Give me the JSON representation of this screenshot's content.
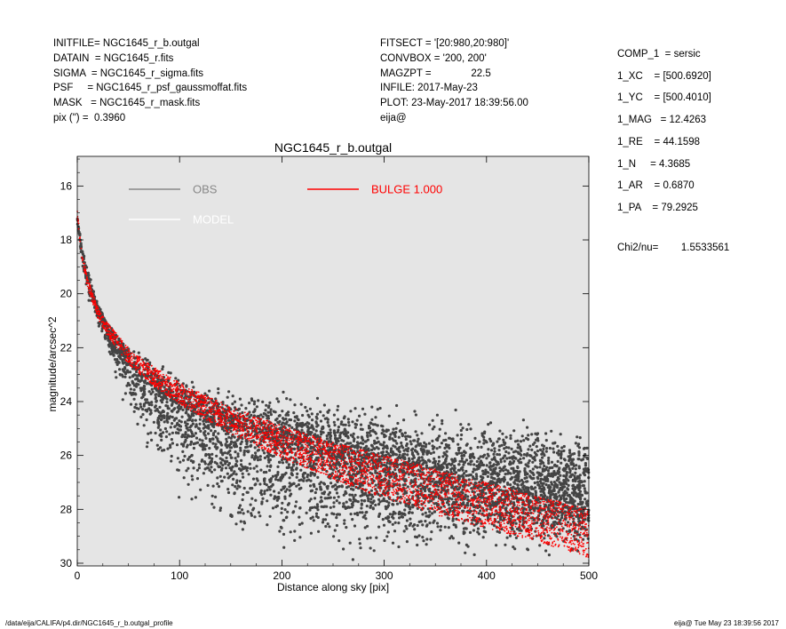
{
  "header_left": [
    {
      "text": "INITFILE= NGC1645_r_b.outgal"
    },
    {
      "text": "DATAIN  = NGC1645_r.fits"
    },
    {
      "text": "SIGMA  = NGC1645_r_sigma.fits"
    },
    {
      "text": "PSF     = NGC1645_r_psf_gaussmoffat.fits"
    },
    {
      "text": "MASK   = NGC1645_r_mask.fits"
    },
    {
      "text": "pix (\") =  0.3960"
    }
  ],
  "header_mid": [
    {
      "text": "FITSECT = '[20:980,20:980]'"
    },
    {
      "text": "CONVBOX = '200, 200'"
    },
    {
      "text": "MAGZPT =              22.5"
    },
    {
      "text": "INFILE: 2017-May-23"
    },
    {
      "text": "PLOT: 23-May-2017 18:39:56.00"
    },
    {
      "text": "eija@"
    }
  ],
  "header_right": [
    {
      "text": "COMP_1  = sersic"
    },
    {
      "text": "1_XC    = [500.6920]"
    },
    {
      "text": "1_YC    = [500.4010]"
    },
    {
      "text": "1_MAG   = 12.4263"
    },
    {
      "text": "1_RE    = 44.1598"
    },
    {
      "text": "1_N     = 4.3685"
    },
    {
      "text": "1_AR    = 0.6870"
    },
    {
      "text": "1_PA    = 79.2925"
    }
  ],
  "chi2": "Chi2/nu=        1.5533561",
  "footer_left": "/data/eija/CALIFA/p4.dir/NGC1645_r_b.outgal_profile",
  "footer_right": "eija@  Tue May 23 18:39:56 2017",
  "chart_data": {
    "type": "scatter",
    "title": "NGC1645_r_b.outgal",
    "xlabel": "Distance along sky [pix]",
    "ylabel": "magnitude/arcsec^2",
    "xlim": [
      0,
      500
    ],
    "ylim": [
      30.1,
      14.9
    ],
    "y_inverted": true,
    "xticks": [
      0,
      100,
      200,
      300,
      400,
      500
    ],
    "yticks": [
      16,
      18,
      20,
      22,
      24,
      26,
      28,
      30
    ],
    "background": "#e5e5e5",
    "legend": [
      {
        "label": "OBS",
        "color": "#888888"
      },
      {
        "label": "BULGE  1.000",
        "color": "#ff0000"
      },
      {
        "label": "MODEL",
        "color": "#ffffff"
      }
    ],
    "series": [
      {
        "name": "OBS",
        "color": "#444444",
        "description_points": {
          "x": [
            0,
            5,
            10,
            20,
            30,
            50,
            70,
            100,
            150,
            200,
            250,
            300,
            350,
            400,
            450,
            500
          ],
          "y_center": [
            17.2,
            18.6,
            19.5,
            20.6,
            21.4,
            22.6,
            23.4,
            24.2,
            25.1,
            25.6,
            26.1,
            26.5,
            26.9,
            27.2,
            27.4,
            27.6
          ],
          "y_low": [
            17.1,
            18.2,
            19.0,
            20.3,
            20.9,
            21.6,
            22.2,
            22.7,
            23.3,
            23.5,
            23.7,
            23.9,
            24.1,
            24.2,
            24.3,
            24.4
          ],
          "y_high": [
            17.4,
            19.2,
            20.2,
            21.2,
            22.3,
            24.8,
            26.3,
            27.7,
            29.5,
            30.0,
            30.0,
            30.0,
            30.0,
            30.0,
            30.0,
            30.0
          ]
        }
      },
      {
        "name": "BULGE",
        "color": "#ff0000",
        "description_points": {
          "x": [
            0,
            5,
            10,
            20,
            30,
            50,
            70,
            100,
            150,
            200,
            250,
            300,
            350,
            400,
            450,
            500
          ],
          "y_low": [
            16.9,
            18.5,
            19.4,
            20.5,
            21.1,
            22.0,
            22.6,
            23.3,
            24.2,
            24.9,
            25.5,
            26.0,
            26.5,
            27.0,
            27.5,
            28.0
          ],
          "y_high": [
            17.3,
            18.8,
            19.8,
            20.9,
            21.6,
            22.6,
            23.3,
            24.1,
            25.2,
            26.1,
            26.9,
            27.6,
            28.2,
            28.7,
            29.2,
            29.8
          ]
        }
      }
    ]
  }
}
